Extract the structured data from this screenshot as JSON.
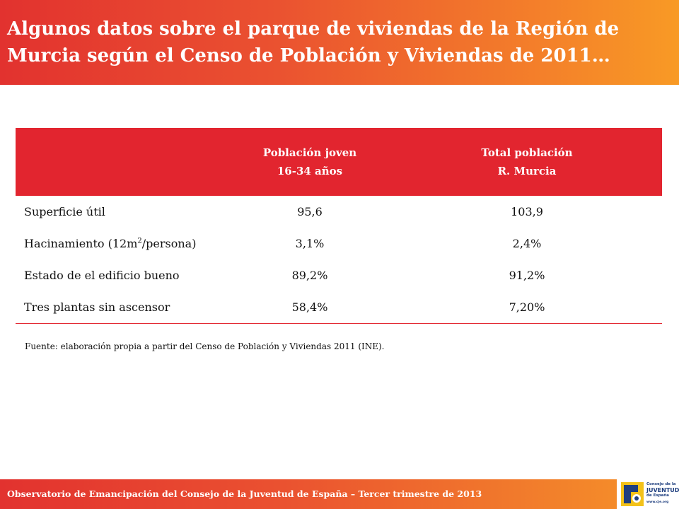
{
  "title": "Algunos datos sobre el parque de viviendas de la Región de Murcia según el Censo de Población y Viviendas de 2011…",
  "table": {
    "headers": [
      {
        "line1": "",
        "line2": ""
      },
      {
        "line1": "Población joven",
        "line2": "16-34 años"
      },
      {
        "line1": "Total población",
        "line2": "R. Murcia"
      }
    ],
    "rows": [
      {
        "label": "Superficie útil",
        "joven": "95,6",
        "total": "103,9"
      },
      {
        "label_pre": "Hacinamiento (12m",
        "label_sup": "2",
        "label_post": "/persona)",
        "joven": "3,1%",
        "total": "2,4%"
      },
      {
        "label": "Estado de el edificio bueno",
        "joven": "89,2%",
        "total": "91,2%"
      },
      {
        "label": "Tres plantas sin ascensor",
        "joven": "58,4%",
        "total": "7,20%"
      }
    ]
  },
  "source": "Fuente: elaboración propia a partir del Censo de Población y Viviendas 2011 (INE).",
  "footer": "Observatorio de Emancipación del Consejo de la Juventud de España – Tercer trimestre de 2013",
  "logo": {
    "icon": "cje-logo-icon",
    "line1": "Consejo de la",
    "line2": "JUVENTUD",
    "line3": "de España",
    "url": "www.cje.org"
  },
  "colors": {
    "accent_red": "#e2252f",
    "gradient_orange": "#f89a25",
    "logo_blue": "#1f3f7f",
    "logo_yellow": "#f3c21a"
  }
}
